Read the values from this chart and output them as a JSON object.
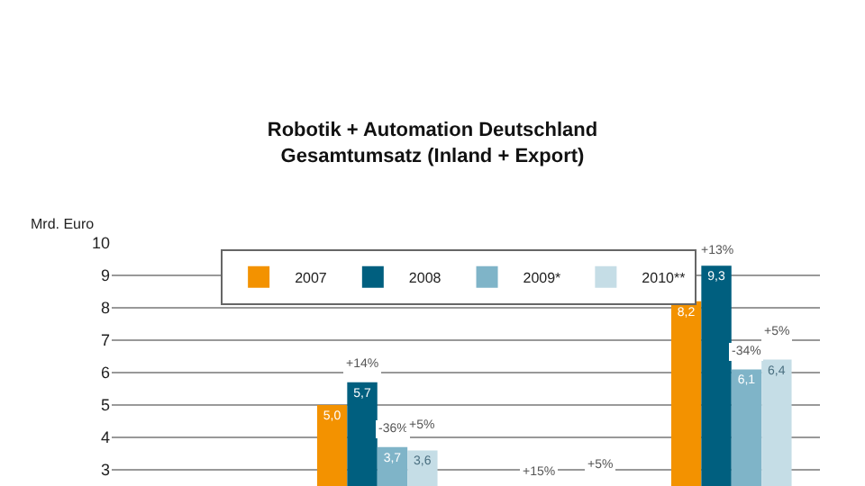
{
  "chart_data": {
    "type": "bar",
    "title": "Robotik + Automation Deutschland\nGesamtumsatz (Inland + Export)",
    "ylabel": "Mrd. Euro",
    "categories": [
      null,
      null,
      null,
      null
    ],
    "series": [
      {
        "name": "2007",
        "color": "#f39200",
        "values": [
          null,
          5.0,
          null,
          8.2
        ],
        "value_labels": [
          null,
          "5,0",
          null,
          "8,2"
        ]
      },
      {
        "name": "2008",
        "color": "#005f7f",
        "values": [
          null,
          5.7,
          null,
          9.3
        ],
        "value_labels": [
          null,
          "5,7",
          null,
          "9,3"
        ]
      },
      {
        "name": "2009*",
        "color": "#7fb4c8",
        "values": [
          null,
          3.7,
          null,
          6.1
        ],
        "value_labels": [
          null,
          "3,7",
          null,
          "6,1"
        ]
      },
      {
        "name": "2010**",
        "color": "#c5dde6",
        "values": [
          null,
          3.6,
          null,
          6.4
        ],
        "value_labels": [
          null,
          "3,6",
          null,
          "6,4"
        ]
      }
    ],
    "annotations": [
      "+14%",
      "-36%",
      "+5%",
      "+15%",
      "+5%",
      "+13%",
      "-34%",
      "+5%"
    ],
    "ylim": [
      2.5,
      10
    ],
    "yticks": [
      3,
      4,
      5,
      6,
      7,
      8,
      9,
      10
    ],
    "grid": "y",
    "legend": "top"
  }
}
